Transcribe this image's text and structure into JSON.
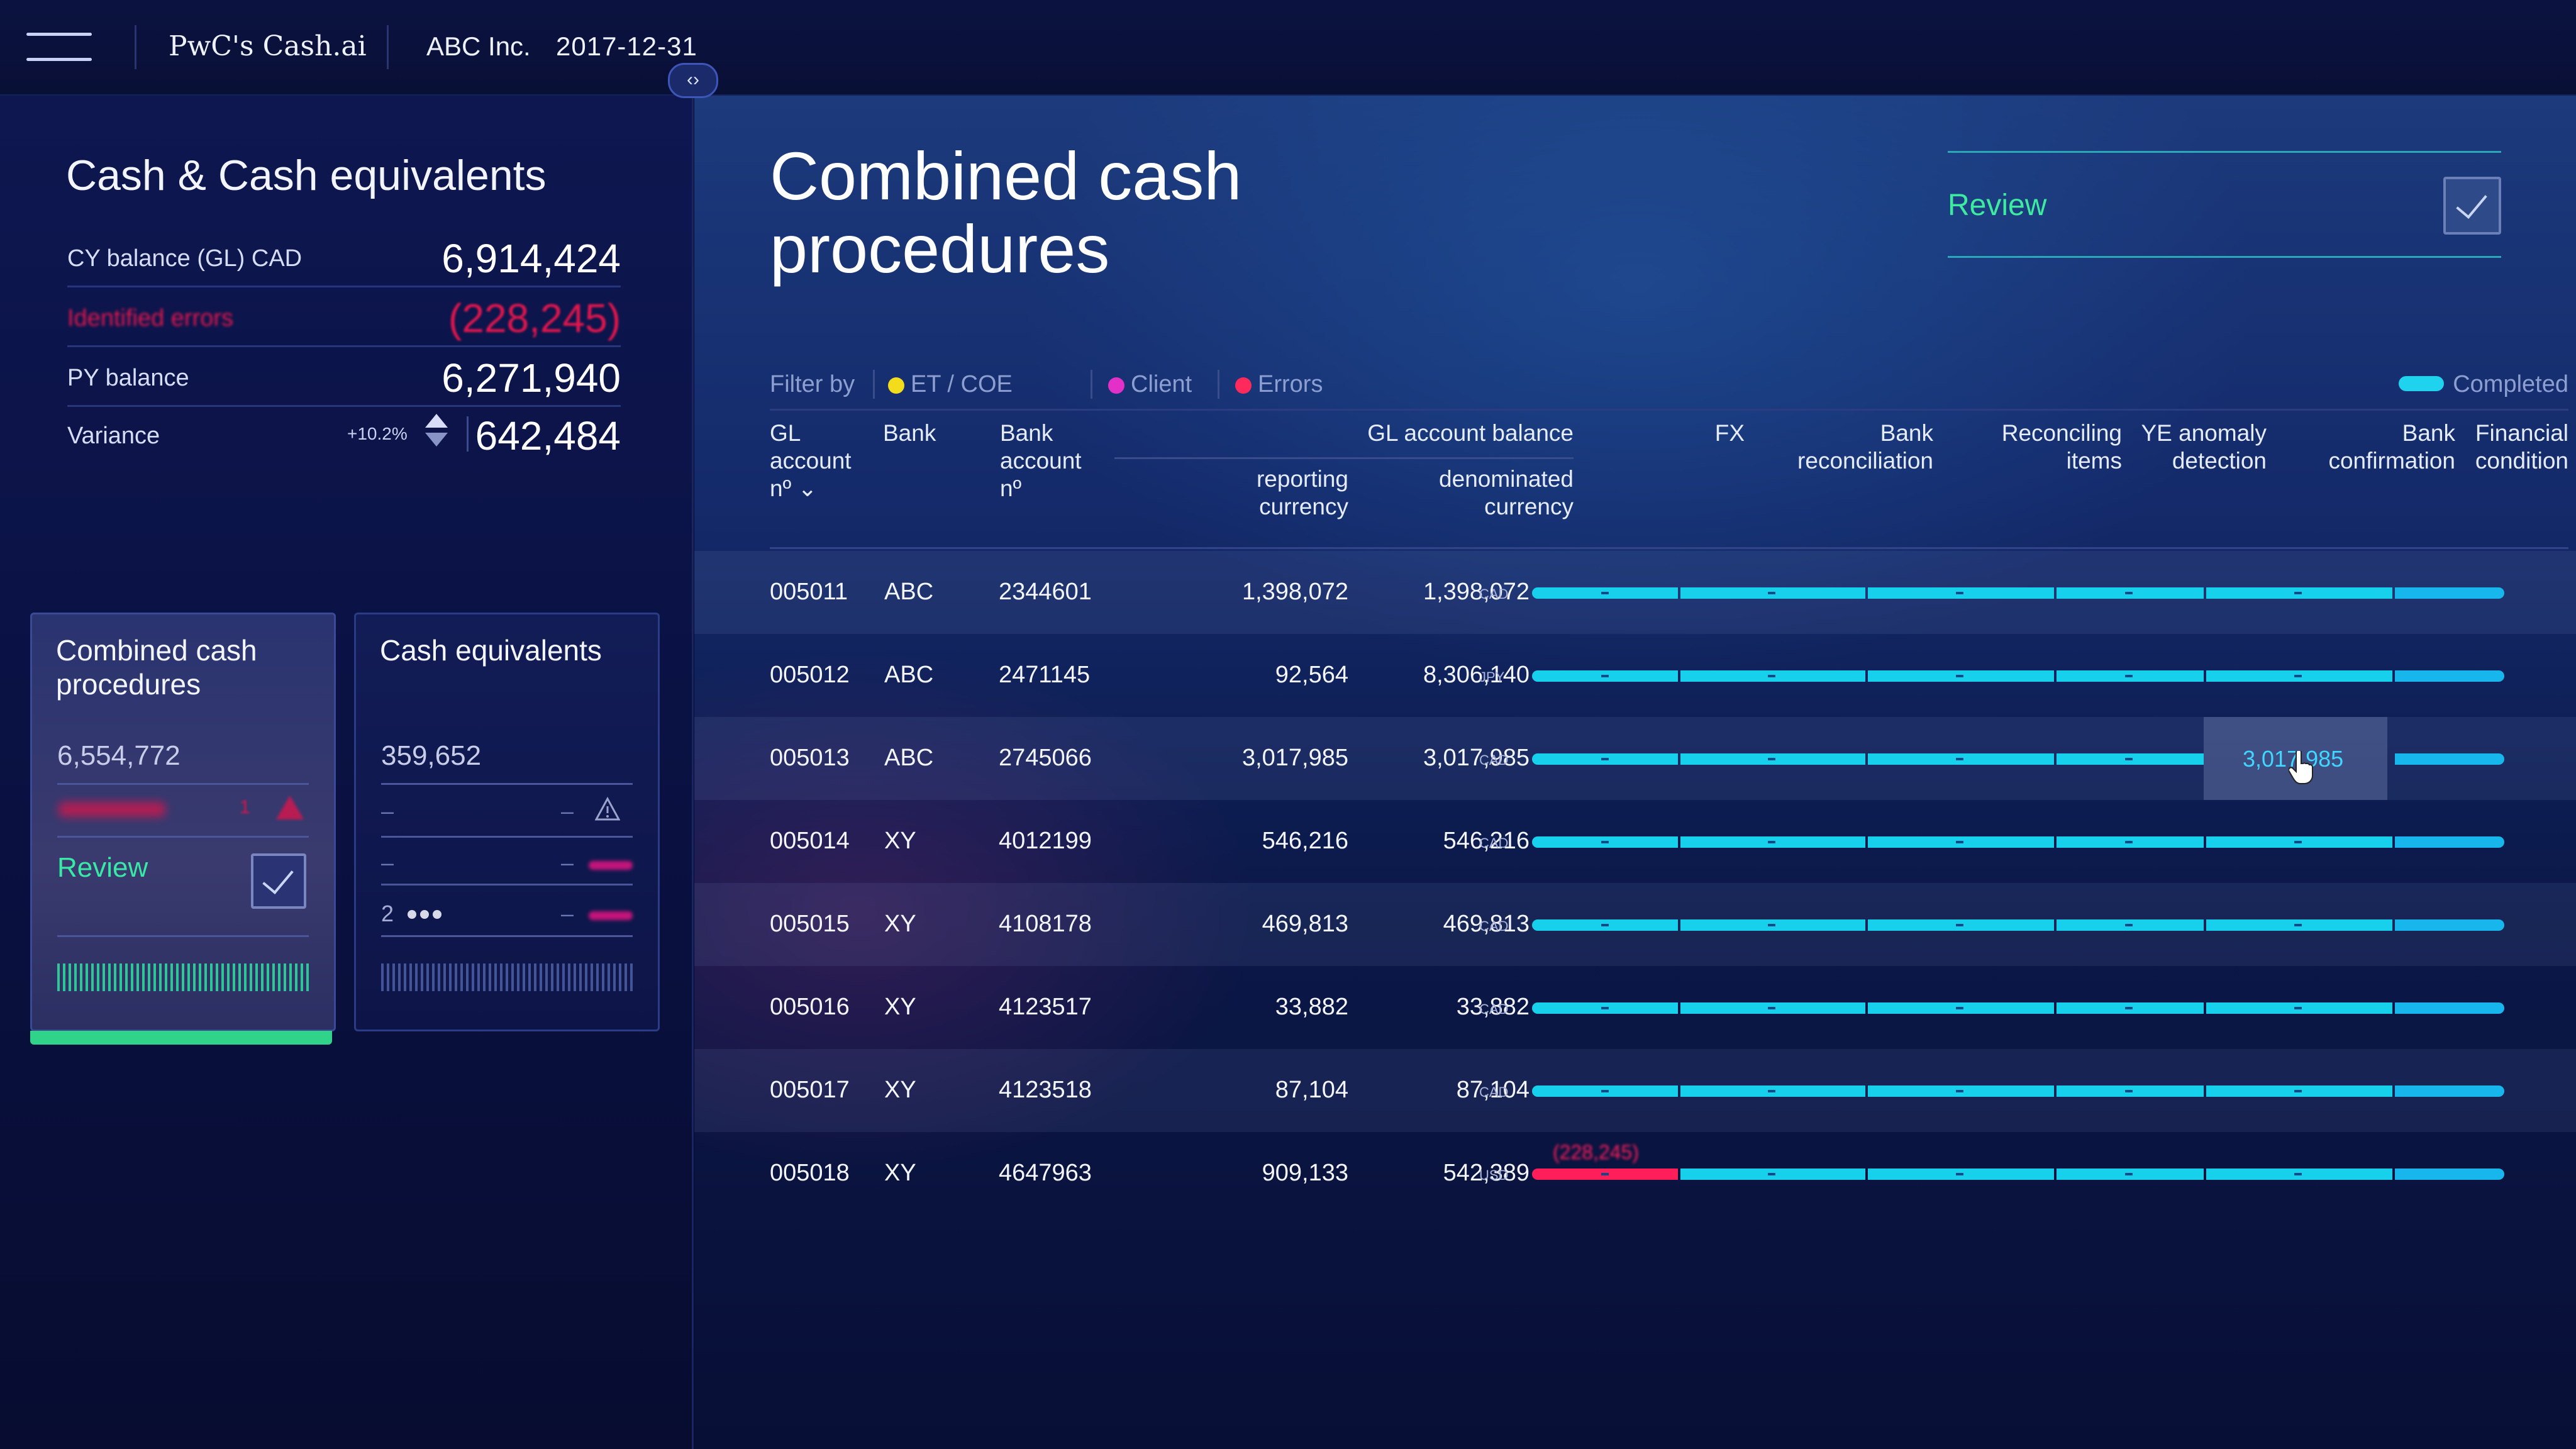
{
  "topbar": {
    "brand": "PwC's Cash.ai",
    "company": "ABC Inc.",
    "date": "2017-12-31"
  },
  "sidebar": {
    "title": "Cash & Cash equivalents",
    "cy_balance": {
      "label": "CY balance (GL) CAD",
      "value": "6,914,424"
    },
    "identified_errors": {
      "label": "Identified errors",
      "value": "(228,245)"
    },
    "py_balance": {
      "label": "PY balance",
      "value": "6,271,940"
    },
    "variance": {
      "label": "Variance",
      "pct": "+10.2%",
      "value": "642,484"
    },
    "cards": [
      {
        "title": "Combined cash procedures",
        "amount": "6,554,772",
        "review_label": "Review",
        "small_value": "1"
      },
      {
        "title": "Cash equivalents",
        "amount": "359,652",
        "dash": "–",
        "count": "2"
      }
    ]
  },
  "main": {
    "title_line1": "Combined cash",
    "title_line2": "procedures",
    "review_label": "Review",
    "filter": {
      "label": "Filter by",
      "items": [
        {
          "label": "ET / COE",
          "color": "#f2dc1c"
        },
        {
          "label": "Client",
          "color": "#e230c8"
        },
        {
          "label": "Errors",
          "color": "#ff2a5c"
        }
      ],
      "completed_label": "Completed"
    },
    "columns": {
      "gl_account": [
        "GL",
        "account",
        "nº ⌄"
      ],
      "bank": "Bank",
      "bank_account": [
        "Bank",
        "account",
        "nº"
      ],
      "gl_balance": "GL account balance",
      "reporting": [
        "reporting",
        "currency"
      ],
      "denominated": [
        "denominated",
        "currency"
      ],
      "fx": "FX",
      "bank_recon": [
        "Bank",
        "reconciliation"
      ],
      "reconciling": [
        "Reconciling",
        "items"
      ],
      "ye_anomaly": [
        "YE anomaly",
        "detection"
      ],
      "bank_conf": [
        "Bank",
        "confirmation"
      ],
      "financial": [
        "Financial",
        "condition"
      ]
    },
    "rows": [
      {
        "gl": "005011",
        "bank": "ABC",
        "acct": "2344601",
        "rep": "1,398,072",
        "den": "1,398,072",
        "cur": "CAD"
      },
      {
        "gl": "005012",
        "bank": "ABC",
        "acct": "2471145",
        "rep": "92,564",
        "den": "8,306,140",
        "cur": "JPY"
      },
      {
        "gl": "005013",
        "bank": "ABC",
        "acct": "2745066",
        "rep": "3,017,985",
        "den": "3,017,985",
        "cur": "CAD",
        "highlight": "3,017,985"
      },
      {
        "gl": "005014",
        "bank": "XY",
        "acct": "4012199",
        "rep": "546,216",
        "den": "546,216",
        "cur": "CAD"
      },
      {
        "gl": "005015",
        "bank": "XY",
        "acct": "4108178",
        "rep": "469,813",
        "den": "469,813",
        "cur": "CAD"
      },
      {
        "gl": "005016",
        "bank": "XY",
        "acct": "4123517",
        "rep": "33,882",
        "den": "33,882",
        "cur": "CAD"
      },
      {
        "gl": "005017",
        "bank": "XY",
        "acct": "4123518",
        "rep": "87,104",
        "den": "87,104",
        "cur": "CAD"
      },
      {
        "gl": "005018",
        "bank": "XY",
        "acct": "4647963",
        "rep": "909,133",
        "den": "542,389",
        "cur": "USD",
        "error": "(228,245)"
      }
    ]
  }
}
